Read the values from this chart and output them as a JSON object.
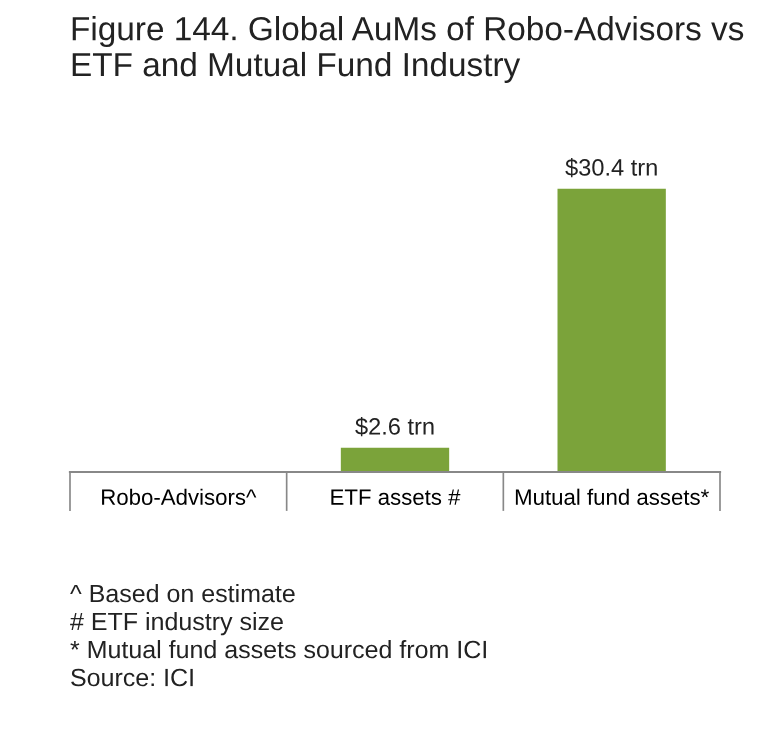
{
  "chart_data": {
    "type": "bar",
    "title": "Figure 144. Global AuMs of Robo-Advisors vs\nETF and Mutual Fund Industry",
    "categories": [
      "Robo-Advisors^",
      "ETF assets #",
      "Mutual fund assets*"
    ],
    "values": [
      0,
      2.6,
      30.4
    ],
    "value_labels": [
      null,
      "$2.6 trn",
      "$30.4 trn"
    ],
    "color": "#7ba33a",
    "annotations": [
      "^ Based on estimate",
      "# ETF industry size",
      "* Mutual fund assets sourced from ICI",
      "Source: ICI"
    ]
  }
}
